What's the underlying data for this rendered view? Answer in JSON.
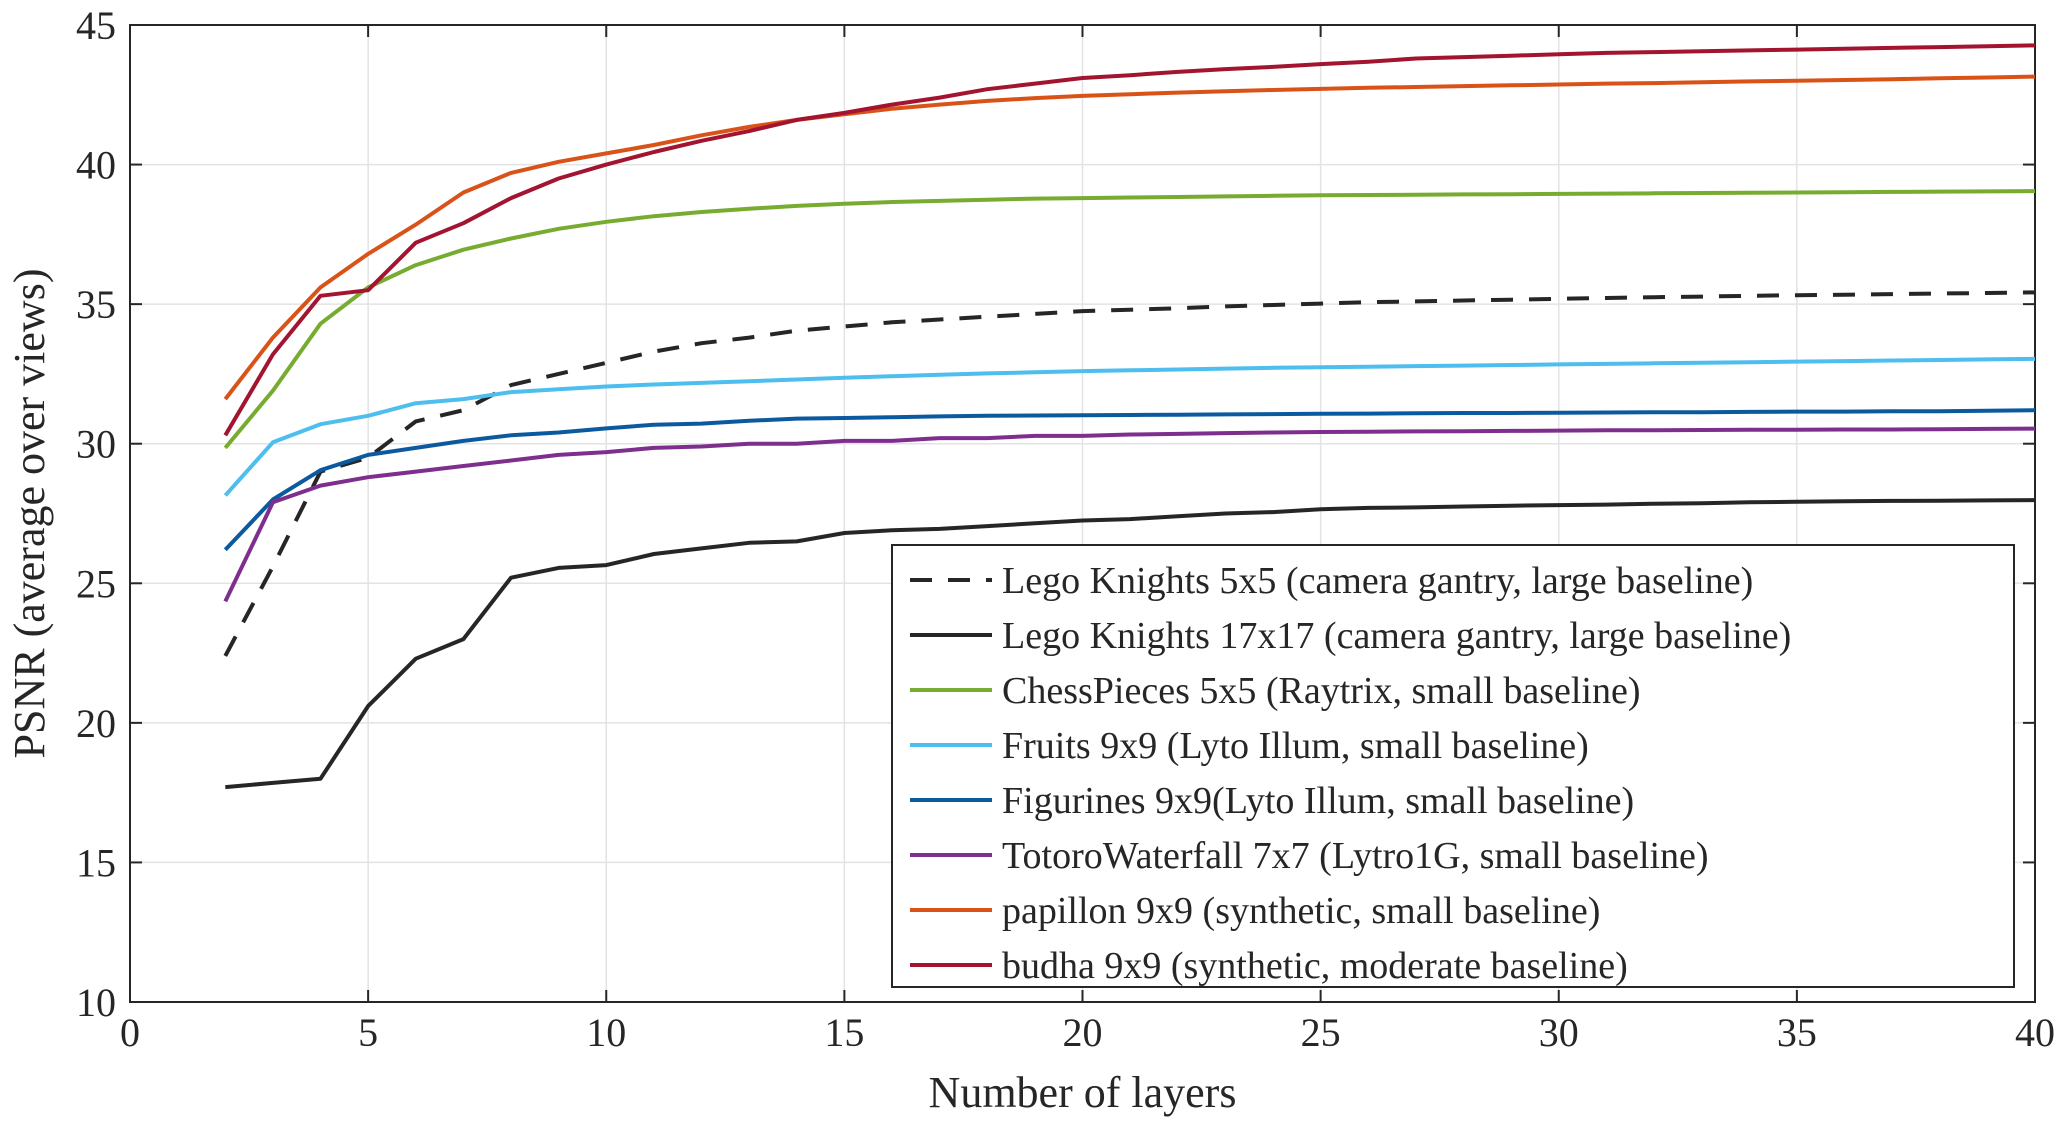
{
  "chart_data": {
    "type": "line",
    "xlabel": "Number of layers",
    "ylabel": "PSNR (average over views)",
    "xlim": [
      0,
      40
    ],
    "ylim": [
      10,
      45
    ],
    "xticks": [
      0,
      5,
      10,
      15,
      20,
      25,
      30,
      35,
      40
    ],
    "yticks": [
      10,
      15,
      20,
      25,
      30,
      35,
      40,
      45
    ],
    "grid": true,
    "legend_position": "bottom-right",
    "series": [
      {
        "name": "Lego Knights 5x5 (camera gantry, large baseline)",
        "color": "#262626",
        "dash": true,
        "x": [
          2,
          3,
          4,
          5,
          6,
          7,
          8,
          9,
          10,
          11,
          12,
          13,
          14,
          15,
          16,
          17,
          18,
          19,
          20,
          21,
          22,
          23,
          24,
          25,
          26,
          27,
          28,
          29,
          30,
          31,
          32,
          33,
          34,
          35,
          36,
          37,
          38,
          39,
          40
        ],
        "y": [
          22.4,
          25.6,
          29.0,
          29.5,
          30.8,
          31.2,
          32.1,
          32.5,
          32.9,
          33.3,
          33.6,
          33.8,
          34.05,
          34.2,
          34.35,
          34.45,
          34.55,
          34.65,
          34.75,
          34.8,
          34.85,
          34.92,
          34.97,
          35.02,
          35.07,
          35.1,
          35.13,
          35.16,
          35.19,
          35.22,
          35.25,
          35.27,
          35.3,
          35.32,
          35.34,
          35.36,
          35.38,
          35.4,
          35.42
        ]
      },
      {
        "name": "Lego Knights 17x17 (camera gantry, large baseline)",
        "color": "#262626",
        "dash": false,
        "x": [
          2,
          3,
          4,
          5,
          6,
          7,
          8,
          9,
          10,
          11,
          12,
          13,
          14,
          15,
          16,
          17,
          18,
          19,
          20,
          21,
          22,
          23,
          24,
          25,
          26,
          27,
          28,
          29,
          30,
          31,
          32,
          33,
          34,
          35,
          36,
          37,
          38,
          39,
          40
        ],
        "y": [
          17.7,
          17.85,
          18.0,
          20.6,
          22.3,
          23.0,
          25.2,
          25.55,
          25.65,
          26.05,
          26.25,
          26.45,
          26.5,
          26.8,
          26.9,
          26.95,
          27.05,
          27.15,
          27.25,
          27.3,
          27.4,
          27.5,
          27.55,
          27.65,
          27.7,
          27.72,
          27.75,
          27.78,
          27.8,
          27.82,
          27.85,
          27.87,
          27.9,
          27.92,
          27.94,
          27.95,
          27.96,
          27.97,
          27.98
        ]
      },
      {
        "name": "ChessPieces 5x5 (Raytrix, small baseline)",
        "color": "#77AC30",
        "dash": false,
        "x": [
          2,
          3,
          4,
          5,
          6,
          7,
          8,
          9,
          10,
          11,
          12,
          13,
          14,
          15,
          16,
          17,
          18,
          19,
          20,
          21,
          22,
          23,
          24,
          25,
          26,
          27,
          28,
          29,
          30,
          31,
          32,
          33,
          34,
          35,
          36,
          37,
          38,
          39,
          40
        ],
        "y": [
          29.85,
          31.9,
          34.3,
          35.6,
          36.4,
          36.95,
          37.35,
          37.7,
          37.95,
          38.15,
          38.3,
          38.42,
          38.52,
          38.6,
          38.66,
          38.7,
          38.74,
          38.78,
          38.8,
          38.82,
          38.84,
          38.86,
          38.88,
          38.9,
          38.91,
          38.92,
          38.93,
          38.94,
          38.95,
          38.96,
          38.97,
          38.98,
          38.99,
          39.0,
          39.01,
          39.02,
          39.03,
          39.04,
          39.05
        ]
      },
      {
        "name": "Fruits 9x9 (Lyto Illum, small baseline)",
        "color": "#4DBEEE",
        "dash": false,
        "x": [
          2,
          3,
          4,
          5,
          6,
          7,
          8,
          9,
          10,
          11,
          12,
          13,
          14,
          15,
          16,
          17,
          18,
          19,
          20,
          21,
          22,
          23,
          24,
          25,
          26,
          27,
          28,
          29,
          30,
          31,
          32,
          33,
          34,
          35,
          36,
          37,
          38,
          39,
          40
        ],
        "y": [
          28.15,
          30.05,
          30.7,
          31.0,
          31.45,
          31.6,
          31.85,
          31.95,
          32.05,
          32.12,
          32.18,
          32.24,
          32.3,
          32.36,
          32.42,
          32.47,
          32.52,
          32.56,
          32.6,
          32.63,
          32.66,
          32.69,
          32.72,
          32.74,
          32.76,
          32.78,
          32.8,
          32.82,
          32.84,
          32.86,
          32.88,
          32.9,
          32.92,
          32.94,
          32.96,
          32.98,
          33.0,
          33.02,
          33.04
        ]
      },
      {
        "name": "Figurines 9x9(Lyto Illum, small baseline)",
        "color": "#0B5AA0",
        "dash": false,
        "x": [
          2,
          3,
          4,
          5,
          6,
          7,
          8,
          9,
          10,
          11,
          12,
          13,
          14,
          15,
          16,
          17,
          18,
          19,
          20,
          21,
          22,
          23,
          24,
          25,
          26,
          27,
          28,
          29,
          30,
          31,
          32,
          33,
          34,
          35,
          36,
          37,
          38,
          39,
          40
        ],
        "y": [
          26.2,
          28.0,
          29.05,
          29.6,
          29.85,
          30.1,
          30.3,
          30.4,
          30.55,
          30.68,
          30.72,
          30.82,
          30.9,
          30.92,
          30.95,
          30.98,
          31.0,
          31.01,
          31.02,
          31.03,
          31.04,
          31.05,
          31.06,
          31.07,
          31.08,
          31.09,
          31.1,
          31.1,
          31.11,
          31.12,
          31.13,
          31.13,
          31.14,
          31.15,
          31.15,
          31.16,
          31.16,
          31.18,
          31.2
        ]
      },
      {
        "name": "TotoroWaterfall 7x7 (Lytro1G, small baseline)",
        "color": "#7E2F8E",
        "dash": false,
        "x": [
          2,
          3,
          4,
          5,
          6,
          7,
          8,
          9,
          10,
          11,
          12,
          13,
          14,
          15,
          16,
          17,
          18,
          19,
          20,
          21,
          22,
          23,
          24,
          25,
          26,
          27,
          28,
          29,
          30,
          31,
          32,
          33,
          34,
          35,
          36,
          37,
          38,
          39,
          40
        ],
        "y": [
          24.35,
          27.9,
          28.5,
          28.8,
          29.0,
          29.2,
          29.4,
          29.6,
          29.7,
          29.85,
          29.9,
          30.0,
          30.0,
          30.1,
          30.1,
          30.2,
          30.2,
          30.28,
          30.28,
          30.33,
          30.35,
          30.38,
          30.4,
          30.42,
          30.43,
          30.44,
          30.45,
          30.46,
          30.47,
          30.48,
          30.48,
          30.49,
          30.5,
          30.5,
          30.51,
          30.51,
          30.52,
          30.53,
          30.54
        ]
      },
      {
        "name": "papillon 9x9 (synthetic, small baseline)",
        "color": "#D95319",
        "dash": false,
        "x": [
          2,
          3,
          4,
          5,
          6,
          7,
          8,
          9,
          10,
          11,
          12,
          13,
          14,
          15,
          16,
          17,
          18,
          19,
          20,
          21,
          22,
          23,
          24,
          25,
          26,
          27,
          28,
          29,
          30,
          31,
          32,
          33,
          34,
          35,
          36,
          37,
          38,
          39,
          40
        ],
        "y": [
          31.6,
          33.8,
          35.6,
          36.8,
          37.85,
          39.0,
          39.7,
          40.1,
          40.4,
          40.7,
          41.05,
          41.35,
          41.6,
          41.8,
          42.0,
          42.15,
          42.28,
          42.38,
          42.46,
          42.52,
          42.58,
          42.63,
          42.67,
          42.71,
          42.75,
          42.78,
          42.81,
          42.84,
          42.87,
          42.9,
          42.92,
          42.95,
          42.98,
          43.0,
          43.03,
          43.06,
          43.09,
          43.12,
          43.15
        ]
      },
      {
        "name": "budha 9x9 (synthetic, moderate baseline)",
        "color": "#A2142F",
        "dash": false,
        "x": [
          2,
          3,
          4,
          5,
          6,
          7,
          8,
          9,
          10,
          11,
          12,
          13,
          14,
          15,
          16,
          17,
          18,
          19,
          20,
          21,
          22,
          23,
          24,
          25,
          26,
          27,
          28,
          29,
          30,
          31,
          32,
          33,
          34,
          35,
          36,
          37,
          38,
          39,
          40
        ],
        "y": [
          30.3,
          33.2,
          35.3,
          35.5,
          37.2,
          37.9,
          38.8,
          39.5,
          40.0,
          40.45,
          40.85,
          41.2,
          41.6,
          41.85,
          42.15,
          42.4,
          42.7,
          42.9,
          43.1,
          43.2,
          43.32,
          43.42,
          43.5,
          43.6,
          43.68,
          43.8,
          43.85,
          43.9,
          43.95,
          44.0,
          44.03,
          44.06,
          44.09,
          44.12,
          44.15,
          44.18,
          44.21,
          44.24,
          44.27
        ]
      }
    ]
  }
}
